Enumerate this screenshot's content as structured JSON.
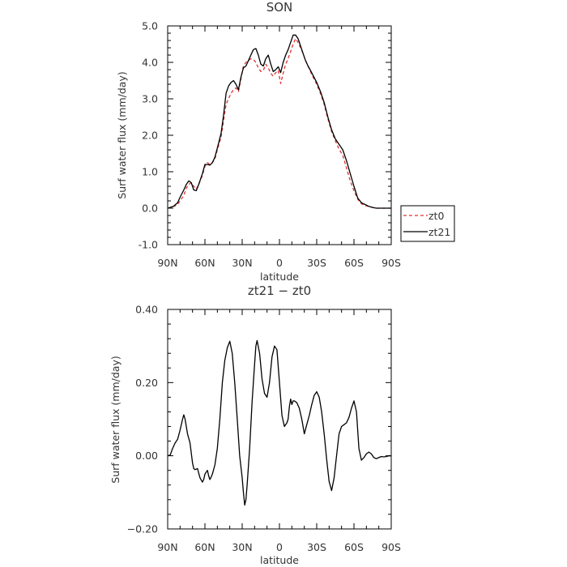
{
  "chart_data": [
    {
      "type": "line",
      "title": "SON",
      "xlabel": "latitude",
      "ylabel": "Surf water flux (mm/day)",
      "xlim": [
        90,
        -90
      ],
      "ylim": [
        -1.0,
        5.0
      ],
      "xticks": [
        90,
        60,
        30,
        0,
        -30,
        -60,
        -90
      ],
      "xtick_labels": [
        "90N",
        "60N",
        "30N",
        "0",
        "30S",
        "60S",
        "90S"
      ],
      "yticks": [
        -1.0,
        0.0,
        1.0,
        2.0,
        3.0,
        4.0,
        5.0
      ],
      "ytick_labels": [
        "-1.0",
        "0.0",
        "1.0",
        "2.0",
        "3.0",
        "4.0",
        "5.0"
      ],
      "grid": false,
      "legend": "outside-right",
      "series": [
        {
          "name": "zt0",
          "color": "#e03030",
          "dash": "dashed",
          "x": [
            90,
            88,
            85,
            82,
            80,
            77,
            75,
            73,
            71,
            69,
            67,
            65,
            62,
            60,
            58,
            56,
            54,
            52,
            50,
            47,
            45,
            43,
            41,
            39,
            37,
            35,
            33,
            31,
            29,
            27,
            25,
            23,
            21,
            19,
            17,
            15,
            13,
            11,
            9,
            7,
            5,
            3,
            1,
            -1,
            -3,
            -5,
            -7,
            -9,
            -11,
            -13,
            -15,
            -17,
            -19,
            -21,
            -23,
            -25,
            -27,
            -30,
            -33,
            -36,
            -39,
            -42,
            -45,
            -48,
            -51,
            -54,
            -57,
            -60,
            -63,
            -66,
            -69,
            -72,
            -75,
            -78,
            -81,
            -84,
            -87,
            -90
          ],
          "y": [
            0.0,
            0.02,
            0.05,
            0.1,
            0.2,
            0.35,
            0.55,
            0.65,
            0.7,
            0.6,
            0.52,
            0.65,
            0.9,
            1.15,
            1.25,
            1.2,
            1.25,
            1.35,
            1.6,
            1.95,
            2.4,
            2.85,
            3.0,
            3.15,
            3.25,
            3.3,
            3.2,
            3.55,
            3.9,
            4.0,
            4.05,
            4.1,
            4.08,
            4.0,
            3.85,
            3.75,
            3.78,
            3.95,
            3.85,
            3.7,
            3.62,
            3.72,
            3.78,
            3.42,
            3.7,
            3.95,
            4.1,
            4.3,
            4.5,
            4.65,
            4.55,
            4.4,
            4.25,
            4.05,
            3.9,
            3.75,
            3.6,
            3.4,
            3.15,
            2.85,
            2.45,
            2.1,
            1.85,
            1.62,
            1.45,
            1.1,
            0.75,
            0.48,
            0.25,
            0.12,
            0.07,
            0.05,
            0.02,
            0.0,
            0.0,
            0.0,
            0.0,
            0.0
          ]
        },
        {
          "name": "zt21",
          "color": "#000000",
          "dash": "solid",
          "x": [
            90,
            88,
            85,
            82,
            80,
            77,
            75,
            73,
            71,
            69,
            67,
            65,
            62,
            60,
            58,
            56,
            54,
            52,
            50,
            47,
            45,
            43,
            41,
            39,
            37,
            35,
            33,
            31,
            29,
            27,
            25,
            23,
            21,
            19,
            17,
            15,
            13,
            11,
            9,
            7,
            5,
            3,
            1,
            -1,
            -3,
            -5,
            -7,
            -9,
            -11,
            -13,
            -15,
            -17,
            -19,
            -21,
            -23,
            -25,
            -27,
            -30,
            -33,
            -36,
            -39,
            -42,
            -45,
            -48,
            -51,
            -54,
            -57,
            -60,
            -63,
            -66,
            -69,
            -72,
            -75,
            -78,
            -81,
            -84,
            -87,
            -90
          ],
          "y": [
            0.0,
            0.02,
            0.06,
            0.15,
            0.3,
            0.5,
            0.65,
            0.75,
            0.7,
            0.5,
            0.48,
            0.65,
            0.95,
            1.2,
            1.2,
            1.18,
            1.25,
            1.4,
            1.65,
            2.05,
            2.55,
            3.15,
            3.35,
            3.45,
            3.5,
            3.4,
            3.25,
            3.6,
            3.85,
            3.9,
            4.05,
            4.2,
            4.35,
            4.38,
            4.2,
            3.95,
            3.9,
            4.1,
            4.2,
            3.95,
            3.75,
            3.8,
            3.88,
            3.72,
            4.0,
            4.2,
            4.35,
            4.55,
            4.75,
            4.75,
            4.65,
            4.45,
            4.25,
            4.05,
            3.9,
            3.78,
            3.65,
            3.45,
            3.2,
            2.9,
            2.5,
            2.15,
            1.9,
            1.75,
            1.6,
            1.3,
            0.95,
            0.6,
            0.28,
            0.15,
            0.1,
            0.05,
            0.02,
            0.0,
            0.0,
            0.0,
            0.0,
            0.0
          ]
        }
      ]
    },
    {
      "type": "line",
      "title": "zt21 − zt0",
      "xlabel": "latitude",
      "ylabel": "Surf water flux (mm/day)",
      "xlim": [
        90,
        -90
      ],
      "ylim": [
        -0.2,
        0.4
      ],
      "xticks": [
        90,
        60,
        30,
        0,
        -30,
        -60,
        -90
      ],
      "xtick_labels": [
        "90N",
        "60N",
        "30N",
        "0",
        "30S",
        "60S",
        "90S"
      ],
      "yticks": [
        -0.2,
        0.0,
        0.2,
        0.4
      ],
      "ytick_labels": [
        "−0.20",
        "0.00",
        "0.20",
        "0.40"
      ],
      "grid": false,
      "series": [
        {
          "color": "#000000",
          "dash": "solid",
          "x": [
            90,
            88,
            86,
            84,
            82,
            80,
            78,
            77,
            76,
            74,
            72,
            70,
            69,
            68,
            66,
            64,
            62,
            61,
            60,
            59,
            58,
            57,
            56,
            55,
            54,
            52,
            50,
            48,
            46,
            44,
            42,
            40,
            38,
            36,
            34,
            32,
            30,
            29,
            28,
            27,
            26,
            24,
            22,
            20,
            19,
            18,
            16,
            14,
            12,
            10,
            8,
            6,
            4,
            2,
            0,
            -2,
            -4,
            -6,
            -7,
            -8,
            -9,
            -10,
            -11,
            -12,
            -14,
            -16,
            -18,
            -20,
            -22,
            -24,
            -26,
            -28,
            -30,
            -32,
            -34,
            -36,
            -38,
            -40,
            -42,
            -44,
            -46,
            -48,
            -50,
            -52,
            -54,
            -56,
            -58,
            -60,
            -62,
            -63,
            -64,
            -66,
            -68,
            -70,
            -72,
            -74,
            -76,
            -78,
            -80,
            -82,
            -84,
            -86,
            -88,
            -90
          ],
          "y": [
            0.0,
            0.002,
            0.02,
            0.035,
            0.045,
            0.07,
            0.1,
            0.112,
            0.1,
            0.06,
            0.035,
            -0.02,
            -0.035,
            -0.038,
            -0.035,
            -0.06,
            -0.072,
            -0.065,
            -0.05,
            -0.045,
            -0.04,
            -0.055,
            -0.065,
            -0.058,
            -0.05,
            -0.025,
            0.02,
            0.1,
            0.2,
            0.26,
            0.295,
            0.313,
            0.28,
            0.2,
            0.1,
            0.0,
            -0.06,
            -0.1,
            -0.135,
            -0.12,
            -0.08,
            0.02,
            0.15,
            0.25,
            0.3,
            0.315,
            0.28,
            0.21,
            0.17,
            0.16,
            0.2,
            0.27,
            0.3,
            0.29,
            0.2,
            0.11,
            0.08,
            0.09,
            0.1,
            0.135,
            0.155,
            0.14,
            0.15,
            0.15,
            0.145,
            0.13,
            0.1,
            0.06,
            0.085,
            0.11,
            0.14,
            0.165,
            0.175,
            0.16,
            0.12,
            0.06,
            -0.01,
            -0.07,
            -0.095,
            -0.06,
            0.0,
            0.06,
            0.08,
            0.085,
            0.09,
            0.105,
            0.13,
            0.15,
            0.12,
            0.07,
            0.02,
            -0.012,
            -0.005,
            0.005,
            0.01,
            0.005,
            -0.005,
            -0.008,
            -0.005,
            -0.002,
            -0.003,
            -0.002,
            0.0,
            0.0
          ]
        }
      ]
    }
  ]
}
